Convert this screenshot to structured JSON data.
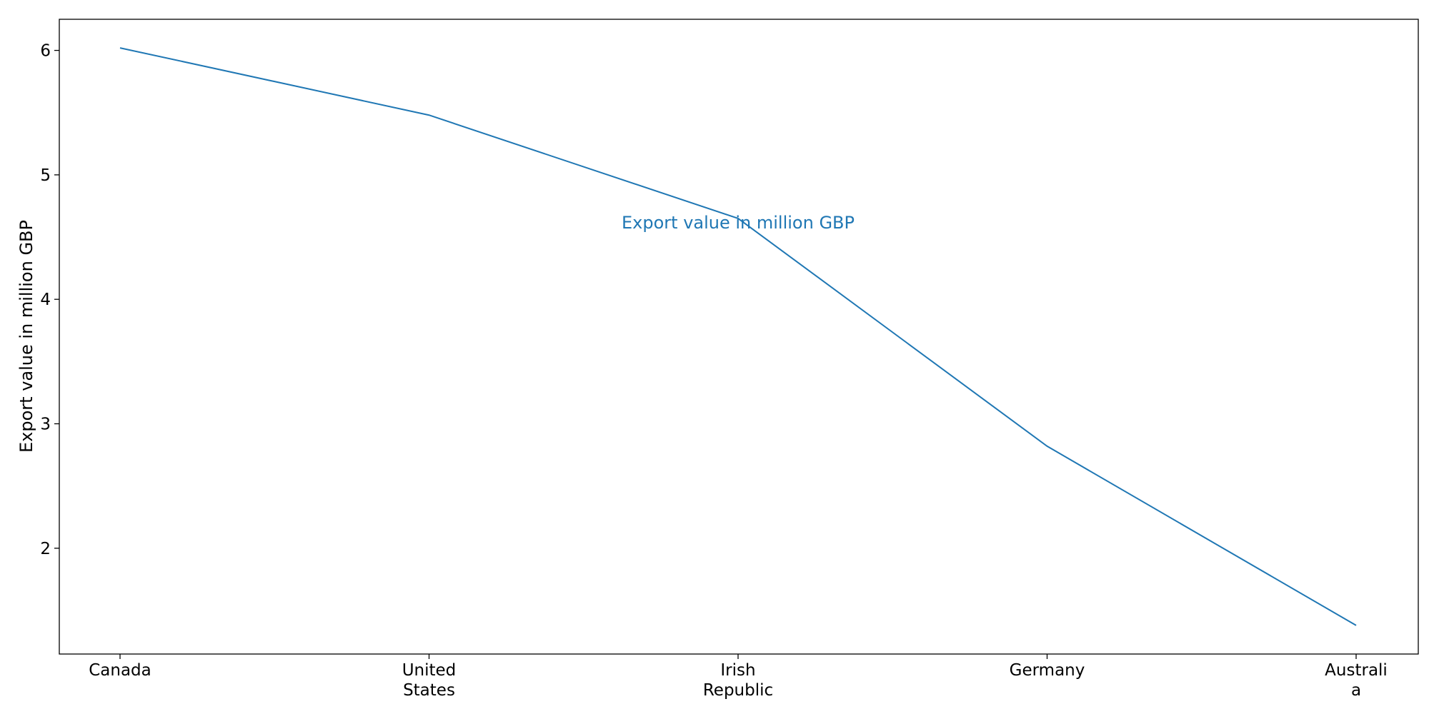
{
  "chart_data": {
    "type": "line",
    "categories": [
      "Canada",
      "United\nStates",
      "Irish\nRepublic",
      "Germany",
      "Australi\na"
    ],
    "series": [
      {
        "values": [
          6.02,
          5.48,
          4.65,
          2.82,
          1.38
        ],
        "color": "#1f77b4"
      }
    ],
    "annotation": {
      "text": "Export value in million GBP",
      "at_category": "Irish\nRepublic",
      "at_value": 4.62,
      "color": "#1f77b4"
    },
    "title": "",
    "xlabel": "",
    "ylabel": "Export value in million GBP",
    "yticks": [
      2,
      3,
      4,
      5,
      6
    ],
    "ylim": [
      1.15,
      6.25
    ],
    "grid": false
  }
}
